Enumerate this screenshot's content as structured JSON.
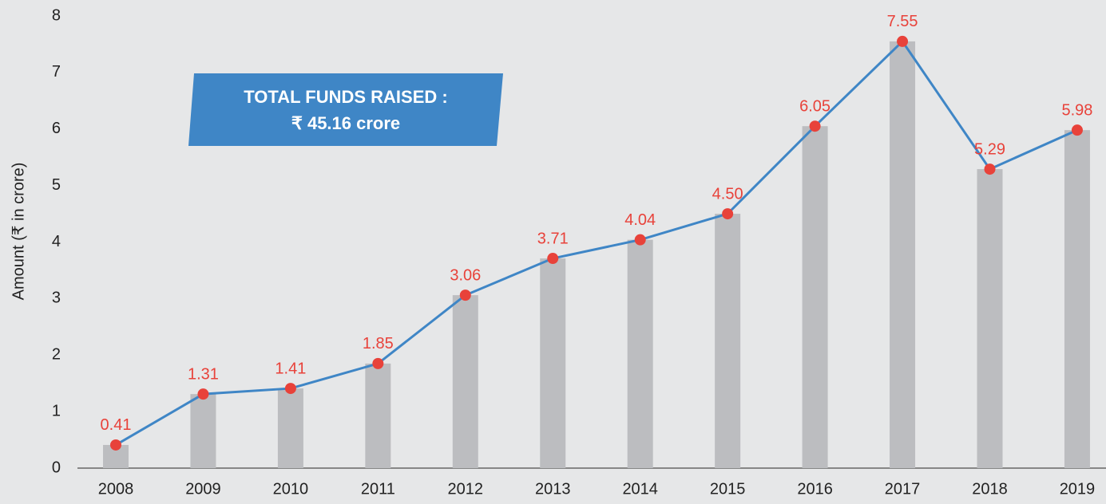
{
  "chart_data": {
    "type": "combo",
    "y_label": "Amount (₹ in crore)",
    "annotation": [
      "TOTAL FUNDS RAISED :",
      "₹ 45.16 crore"
    ],
    "categories": [
      "2008",
      "2009",
      "2010",
      "2011",
      "2012",
      "2013",
      "2014",
      "2015",
      "2016",
      "2017",
      "2018",
      "2019"
    ],
    "values": [
      0.41,
      1.31,
      1.41,
      1.85,
      3.06,
      3.71,
      4.04,
      4.5,
      6.05,
      7.55,
      5.29,
      5.98
    ],
    "value_labels": [
      "0.41",
      "1.31",
      "1.41",
      "1.85",
      "3.06",
      "3.71",
      "4.04",
      "4.50",
      "6.05",
      "7.55",
      "5.29",
      "5.98"
    ],
    "bar_color": "#bcbdc0",
    "line_color": "#3f86c6",
    "marker_color": "#e8423a",
    "label_color": "#e8423a",
    "annotation_color": "#3f86c6",
    "ylim": [
      0,
      8
    ],
    "yticks": [
      0,
      1,
      2,
      3,
      4,
      5,
      6,
      7,
      8
    ],
    "grid": false
  }
}
